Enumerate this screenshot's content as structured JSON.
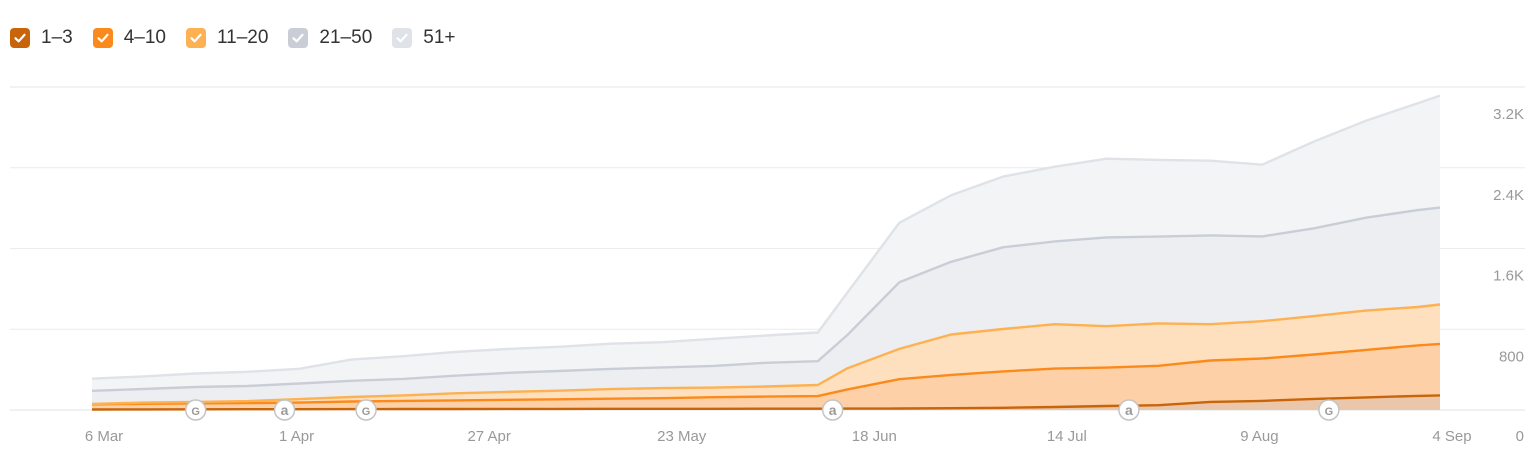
{
  "legend": [
    {
      "label": "1–3",
      "color": "#c8650a",
      "checked": true
    },
    {
      "label": "4–10",
      "color": "#fb8a1c",
      "checked": true
    },
    {
      "label": "11–20",
      "color": "#fdb152",
      "checked": true
    },
    {
      "label": "21–50",
      "color": "#c9ced6",
      "checked": true
    },
    {
      "label": "51+",
      "color": "#dfe2e7",
      "checked": true
    }
  ],
  "chart_data": {
    "type": "area",
    "stacked": true,
    "x_tick_labels": [
      "6 Mar",
      "1 Apr",
      "27 Apr",
      "23 May",
      "18 Jun",
      "14 Jul",
      "9 Aug",
      "4 Sep"
    ],
    "y_tick_labels": [
      "0",
      "800",
      "1.6K",
      "2.4K",
      "3.2K"
    ],
    "ylim": [
      0,
      3200
    ],
    "grid": true,
    "x_start": "2023-03-06",
    "x": [
      "2023-03-06",
      "2023-03-13",
      "2023-03-20",
      "2023-03-27",
      "2023-04-03",
      "2023-04-10",
      "2023-04-17",
      "2023-04-24",
      "2023-05-01",
      "2023-05-08",
      "2023-05-15",
      "2023-05-22",
      "2023-05-29",
      "2023-06-05",
      "2023-06-12",
      "2023-06-16",
      "2023-06-23",
      "2023-06-30",
      "2023-07-07",
      "2023-07-14",
      "2023-07-21",
      "2023-07-28",
      "2023-08-04",
      "2023-08-11",
      "2023-08-18",
      "2023-08-25",
      "2023-09-01",
      "2023-09-04"
    ],
    "series": [
      {
        "name": "1–3",
        "color": "#c8650a",
        "values": [
          5,
          6,
          7,
          8,
          8,
          9,
          10,
          10,
          11,
          11,
          12,
          12,
          12,
          13,
          13,
          14,
          15,
          18,
          22,
          30,
          40,
          48,
          80,
          90,
          110,
          125,
          140,
          145
        ]
      },
      {
        "name": "4–10",
        "color": "#fb8a1c",
        "values": [
          50,
          55,
          58,
          60,
          65,
          75,
          80,
          85,
          90,
          95,
          100,
          105,
          115,
          120,
          125,
          190,
          290,
          330,
          360,
          380,
          380,
          390,
          410,
          420,
          440,
          470,
          500,
          510
        ]
      },
      {
        "name": "11–20",
        "color": "#fdb152",
        "values": [
          5,
          12,
          15,
          20,
          35,
          45,
          55,
          70,
          78,
          85,
          95,
          100,
          95,
          100,
          110,
          210,
          300,
          400,
          420,
          440,
          410,
          420,
          360,
          370,
          380,
          390,
          380,
          390
        ]
      },
      {
        "name": "21–50",
        "color": "#c9ced6",
        "values": [
          130,
          135,
          148,
          150,
          155,
          160,
          163,
          175,
          189,
          195,
          200,
          205,
          215,
          235,
          235,
          330,
          660,
          720,
          810,
          820,
          880,
          860,
          880,
          840,
          870,
          920,
          960,
          960
        ]
      },
      {
        "name": "51+",
        "color": "#dfe2e7",
        "values": [
          120,
          125,
          134,
          140,
          145,
          210,
          225,
          235,
          236,
          240,
          250,
          250,
          268,
          270,
          285,
          420,
          590,
          660,
          700,
          740,
          780,
          760,
          740,
          710,
          860,
          960,
          1060,
          1110
        ]
      }
    ],
    "annotations": [
      {
        "label": "G",
        "date": "2023-03-20"
      },
      {
        "label": "a",
        "date": "2023-04-01"
      },
      {
        "label": "G",
        "date": "2023-04-12"
      },
      {
        "label": "a",
        "date": "2023-06-14"
      },
      {
        "label": "a",
        "date": "2023-07-24"
      },
      {
        "label": "G",
        "date": "2023-08-20"
      }
    ]
  }
}
